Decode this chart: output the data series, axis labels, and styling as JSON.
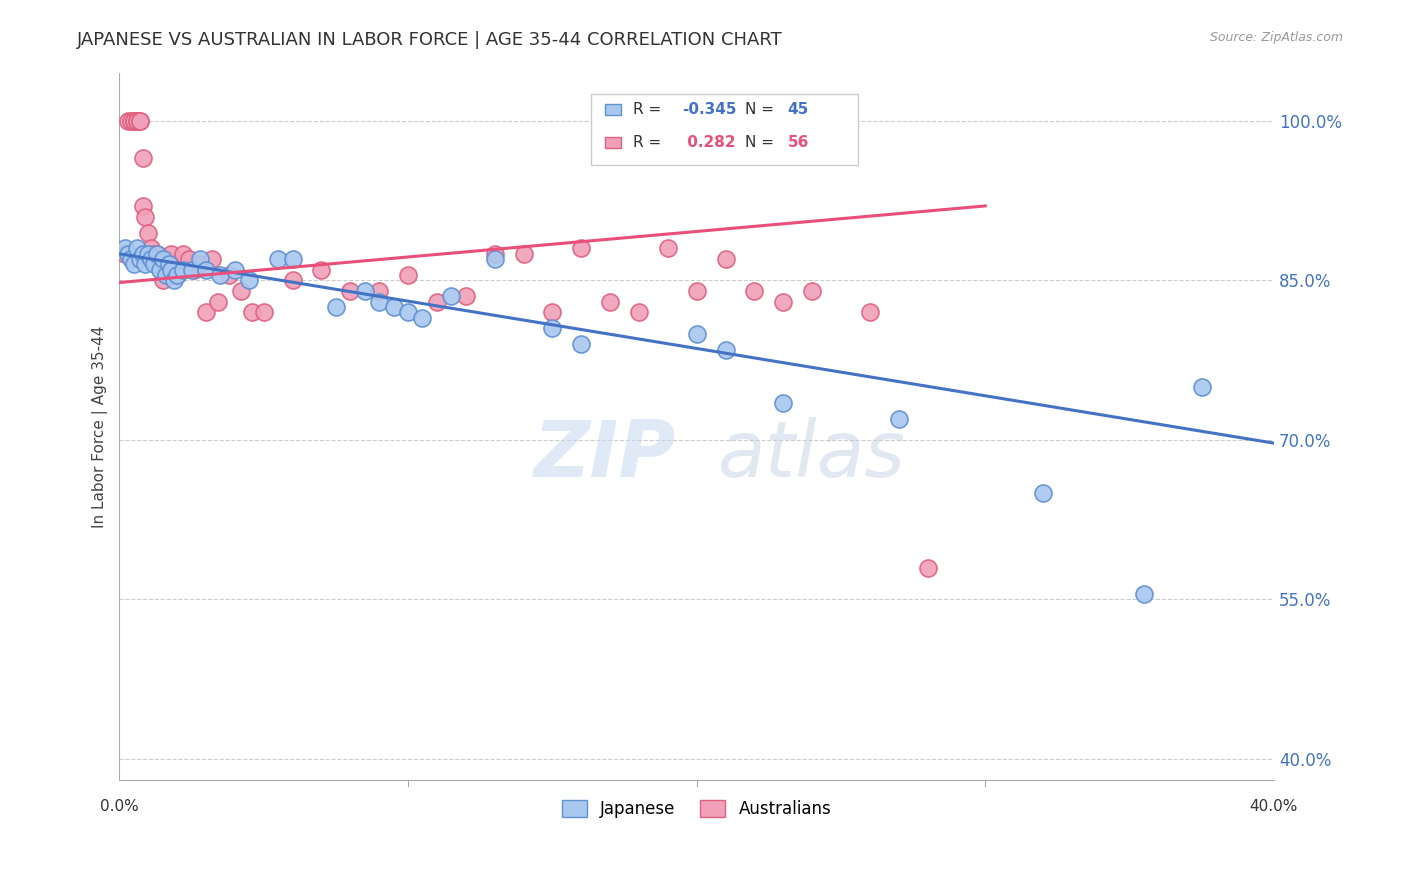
{
  "title": "JAPANESE VS AUSTRALIAN IN LABOR FORCE | AGE 35-44 CORRELATION CHART",
  "source": "Source: ZipAtlas.com",
  "ylabel": "In Labor Force | Age 35-44",
  "yticks": [
    1.0,
    0.85,
    0.7,
    0.55,
    0.4
  ],
  "ytick_labels": [
    "100.0%",
    "85.0%",
    "70.0%",
    "55.0%",
    "40.0%"
  ],
  "xlim": [
    0.0,
    0.4
  ],
  "ylim": [
    0.38,
    1.045
  ],
  "legend1_label": "Japanese",
  "legend2_label": "Australians",
  "R_japanese": -0.345,
  "N_japanese": 45,
  "R_australian": 0.282,
  "N_australian": 56,
  "japanese_color": "#a8c8f0",
  "australian_color": "#f0a0b8",
  "japanese_edge_color": "#6090d0",
  "australian_edge_color": "#e06080",
  "japanese_line_color": "#4472c4",
  "australian_line_color": "#e8507a",
  "japanese_x": [
    0.002,
    0.003,
    0.004,
    0.005,
    0.006,
    0.007,
    0.008,
    0.009,
    0.01,
    0.011,
    0.012,
    0.013,
    0.014,
    0.015,
    0.016,
    0.017,
    0.018,
    0.019,
    0.02,
    0.022,
    0.025,
    0.028,
    0.03,
    0.035,
    0.04,
    0.045,
    0.055,
    0.06,
    0.075,
    0.085,
    0.09,
    0.095,
    0.1,
    0.105,
    0.115,
    0.13,
    0.15,
    0.16,
    0.2,
    0.21,
    0.23,
    0.27,
    0.32,
    0.355,
    0.375
  ],
  "japanese_y": [
    0.88,
    0.875,
    0.87,
    0.865,
    0.88,
    0.87,
    0.875,
    0.865,
    0.875,
    0.87,
    0.865,
    0.875,
    0.86,
    0.87,
    0.855,
    0.865,
    0.86,
    0.85,
    0.855,
    0.86,
    0.86,
    0.87,
    0.86,
    0.855,
    0.86,
    0.85,
    0.87,
    0.87,
    0.825,
    0.84,
    0.83,
    0.825,
    0.82,
    0.815,
    0.835,
    0.87,
    0.805,
    0.79,
    0.8,
    0.785,
    0.735,
    0.72,
    0.65,
    0.555,
    0.75
  ],
  "australian_x": [
    0.002,
    0.003,
    0.004,
    0.005,
    0.005,
    0.006,
    0.006,
    0.007,
    0.007,
    0.008,
    0.008,
    0.009,
    0.01,
    0.01,
    0.011,
    0.012,
    0.013,
    0.014,
    0.015,
    0.016,
    0.017,
    0.018,
    0.019,
    0.02,
    0.022,
    0.024,
    0.026,
    0.028,
    0.03,
    0.032,
    0.034,
    0.038,
    0.042,
    0.046,
    0.05,
    0.06,
    0.07,
    0.08,
    0.09,
    0.1,
    0.11,
    0.12,
    0.13,
    0.14,
    0.15,
    0.16,
    0.17,
    0.18,
    0.19,
    0.2,
    0.21,
    0.22,
    0.23,
    0.24,
    0.26,
    0.28
  ],
  "australian_y": [
    0.875,
    1.0,
    1.0,
    1.0,
    1.0,
    1.0,
    1.0,
    1.0,
    1.0,
    0.965,
    0.92,
    0.91,
    0.87,
    0.895,
    0.88,
    0.875,
    0.875,
    0.87,
    0.85,
    0.87,
    0.855,
    0.875,
    0.855,
    0.855,
    0.875,
    0.87,
    0.86,
    0.865,
    0.82,
    0.87,
    0.83,
    0.855,
    0.84,
    0.82,
    0.82,
    0.85,
    0.86,
    0.84,
    0.84,
    0.855,
    0.83,
    0.835,
    0.875,
    0.875,
    0.82,
    0.88,
    0.83,
    0.82,
    0.88,
    0.84,
    0.87,
    0.84,
    0.83,
    0.84,
    0.82,
    0.58
  ],
  "jap_line_x0": 0.0,
  "jap_line_x1": 0.4,
  "jap_line_y0": 0.875,
  "jap_line_y1": 0.697,
  "aus_line_x0": 0.0,
  "aus_line_x1": 0.3,
  "aus_line_y0": 0.848,
  "aus_line_y1": 0.92
}
